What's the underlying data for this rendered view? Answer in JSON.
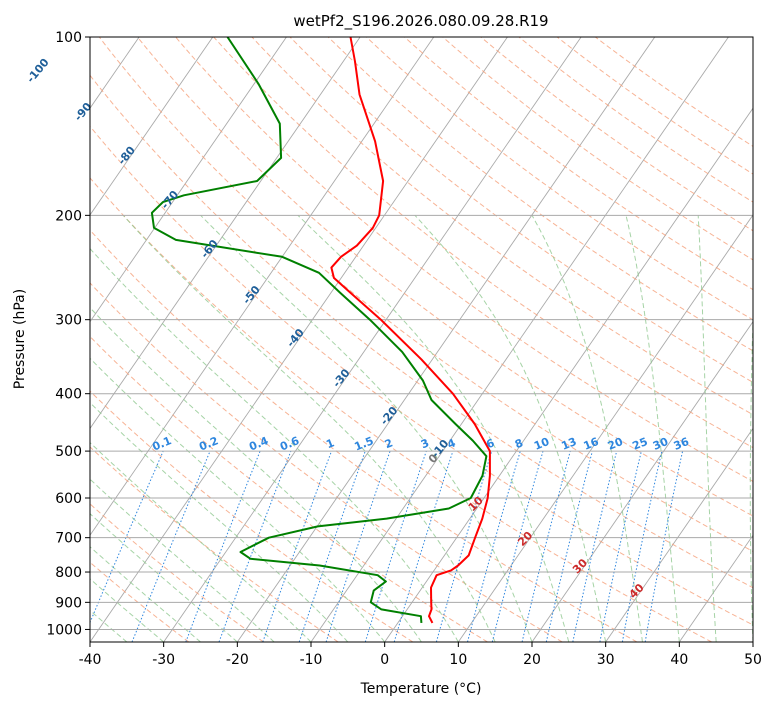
{
  "chart_data": {
    "type": "line",
    "title": "wetPf2_S196.2026.080.09.28.R19",
    "xlabel": "Temperature (°C)",
    "ylabel": "Pressure (hPa)",
    "xlim": [
      -40,
      50
    ],
    "ylim": [
      1050,
      100
    ],
    "yscale": "log",
    "skew": true,
    "grid": true,
    "x_ticks": [
      -40,
      -30,
      -20,
      -10,
      0,
      10,
      20,
      30,
      40,
      50
    ],
    "y_ticks": [
      100,
      200,
      300,
      400,
      500,
      600,
      700,
      800,
      900,
      1000
    ],
    "colors": {
      "temperature": "#ff0000",
      "dewpoint": "#008000",
      "isotherm": "#aaaaaa",
      "dry_adiabat": "#f5a07a",
      "moist_adiabat": "#90c890",
      "mixing_ratio": "#2e86de",
      "dry_adiabat_label": "#1f5f99"
    },
    "series": [
      {
        "name": "",
        "color": "#ff0000",
        "points": [
          {
            "p": 975,
            "t": 4.7
          },
          {
            "p": 950,
            "t": 3.6
          },
          {
            "p": 925,
            "t": 3.3
          },
          {
            "p": 900,
            "t": 2.6
          },
          {
            "p": 850,
            "t": 1.2
          },
          {
            "p": 810,
            "t": 0.8
          },
          {
            "p": 795,
            "t": 2.3
          },
          {
            "p": 780,
            "t": 2.8
          },
          {
            "p": 750,
            "t": 3.3
          },
          {
            "p": 700,
            "t": 2.5
          },
          {
            "p": 650,
            "t": 1.7
          },
          {
            "p": 600,
            "t": 0.5
          },
          {
            "p": 550,
            "t": -1.3
          },
          {
            "p": 500,
            "t": -3.6
          },
          {
            "p": 450,
            "t": -8.2
          },
          {
            "p": 400,
            "t": -14.0
          },
          {
            "p": 350,
            "t": -21.5
          },
          {
            "p": 300,
            "t": -30.7
          },
          {
            "p": 270,
            "t": -37.4
          },
          {
            "p": 255,
            "t": -41.0
          },
          {
            "p": 245,
            "t": -42.3
          },
          {
            "p": 235,
            "t": -42.0
          },
          {
            "p": 225,
            "t": -40.9
          },
          {
            "p": 210,
            "t": -40.4
          },
          {
            "p": 200,
            "t": -40.7
          },
          {
            "p": 175,
            "t": -43.4
          },
          {
            "p": 150,
            "t": -48.2
          },
          {
            "p": 125,
            "t": -54.7
          },
          {
            "p": 110,
            "t": -58.4
          },
          {
            "p": 100,
            "t": -61.3
          }
        ]
      },
      {
        "name": "",
        "color": "#008000",
        "points": [
          {
            "p": 975,
            "t": 3.2
          },
          {
            "p": 950,
            "t": 2.5
          },
          {
            "p": 925,
            "t": -3.5
          },
          {
            "p": 900,
            "t": -5.6
          },
          {
            "p": 860,
            "t": -6.3
          },
          {
            "p": 830,
            "t": -5.5
          },
          {
            "p": 810,
            "t": -7.2
          },
          {
            "p": 780,
            "t": -16.0
          },
          {
            "p": 760,
            "t": -26.0
          },
          {
            "p": 740,
            "t": -28.0
          },
          {
            "p": 700,
            "t": -25.5
          },
          {
            "p": 670,
            "t": -19.9
          },
          {
            "p": 650,
            "t": -11.3
          },
          {
            "p": 625,
            "t": -3.8
          },
          {
            "p": 600,
            "t": -1.8
          },
          {
            "p": 550,
            "t": -2.3
          },
          {
            "p": 510,
            "t": -3.6
          },
          {
            "p": 480,
            "t": -6.9
          },
          {
            "p": 450,
            "t": -10.8
          },
          {
            "p": 410,
            "t": -16.3
          },
          {
            "p": 380,
            "t": -19.3
          },
          {
            "p": 340,
            "t": -24.8
          },
          {
            "p": 300,
            "t": -32.2
          },
          {
            "p": 270,
            "t": -38.8
          },
          {
            "p": 250,
            "t": -43.5
          },
          {
            "p": 235,
            "t": -50.0
          },
          {
            "p": 220,
            "t": -66.0
          },
          {
            "p": 210,
            "t": -70.1
          },
          {
            "p": 198,
            "t": -71.8
          },
          {
            "p": 190,
            "t": -71.3
          },
          {
            "p": 185,
            "t": -69.1
          },
          {
            "p": 175,
            "t": -60.5
          },
          {
            "p": 160,
            "t": -59.4
          },
          {
            "p": 140,
            "t": -62.8
          },
          {
            "p": 120,
            "t": -69.4
          },
          {
            "p": 100,
            "t": -78.0
          }
        ]
      }
    ],
    "dry_adiabat_labels": [
      "-100",
      "-90",
      "-80",
      "-70",
      "-60",
      "-50",
      "-40",
      "-30",
      "-20",
      "-10"
    ],
    "mixing_ratio_labels": [
      "0.1",
      "0.2",
      "0.4",
      "0.6",
      "1",
      "1.5",
      "2",
      "3",
      "4",
      "6",
      "8",
      "10",
      "13",
      "16",
      "20",
      "25",
      "30",
      "36"
    ],
    "moist_adiabat_labels": [
      "0",
      "10",
      "20",
      "30",
      "40"
    ]
  }
}
